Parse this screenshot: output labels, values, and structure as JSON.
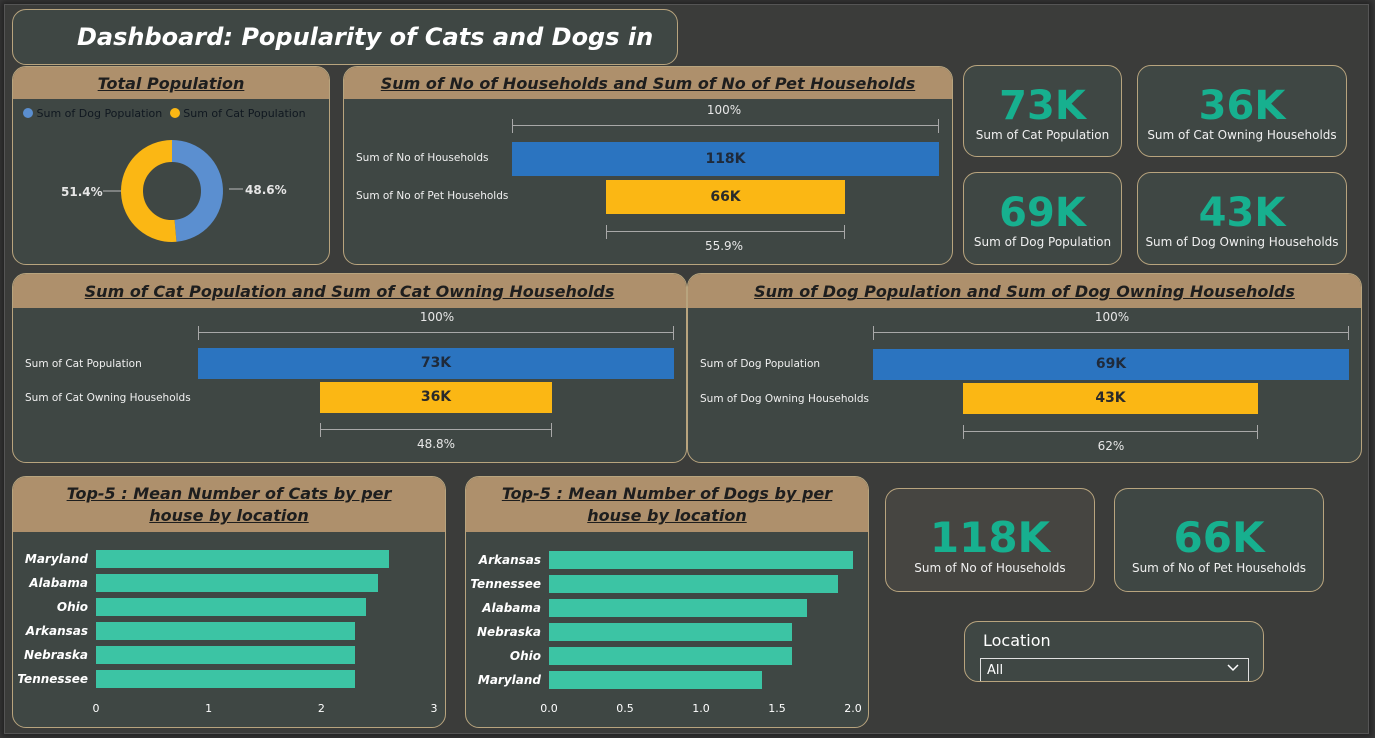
{
  "title": "Dashboard: Popularity of Cats and Dogs in US",
  "colors": {
    "blue": "#2b74c0",
    "yellow": "#fbb714",
    "teal": "#3cc4a4",
    "kpi_teal": "#17b08f",
    "header": "#ae906c",
    "card": "#3f4744"
  },
  "total_population": {
    "title": "Total Population",
    "legend": [
      "Sum of Dog Population",
      "Sum of Cat Population"
    ],
    "dog_pct": "48.6%",
    "cat_pct": "51.4%"
  },
  "households_funnel": {
    "title": "Sum of No of Households and Sum of No of Pet Households",
    "top_pct": "100%",
    "rows": [
      {
        "label": "Sum of No of Households",
        "value": "118K"
      },
      {
        "label": "Sum of No of Pet Households",
        "value": "66K"
      }
    ],
    "bottom_pct": "55.9%"
  },
  "cat_funnel": {
    "title": "Sum of Cat Population and Sum of Cat Owning Households",
    "top_pct": "100%",
    "rows": [
      {
        "label": "Sum of Cat Population",
        "value": "73K"
      },
      {
        "label": "Sum of Cat Owning Households",
        "value": "36K"
      }
    ],
    "bottom_pct": "48.8%"
  },
  "dog_funnel": {
    "title": "Sum of Dog Population and Sum of Dog Owning Households",
    "top_pct": "100%",
    "rows": [
      {
        "label": "Sum of Dog Population",
        "value": "69K"
      },
      {
        "label": "Sum of Dog Owning Households",
        "value": "43K"
      }
    ],
    "bottom_pct": "62%"
  },
  "kpis": {
    "cat_population": {
      "value": "73K",
      "label": "Sum of Cat Population"
    },
    "cat_households": {
      "value": "36K",
      "label": "Sum of Cat Owning Households"
    },
    "dog_population": {
      "value": "69K",
      "label": "Sum of Dog Population"
    },
    "dog_households": {
      "value": "43K",
      "label": "Sum of Dog Owning Households"
    },
    "households": {
      "value": "118K",
      "label": "Sum of No of Households"
    },
    "pet_households": {
      "value": "66K",
      "label": "Sum of No of Pet Households"
    }
  },
  "slicer": {
    "title": "Location",
    "selected": "All"
  },
  "chart_data": [
    {
      "type": "pie",
      "title": "Total Population",
      "categories": [
        "Sum of Dog Population",
        "Sum of Cat Population"
      ],
      "values": [
        48.6,
        51.4
      ]
    },
    {
      "type": "bar",
      "title": "Top-5 : Mean Number of Cats by per house by location",
      "categories": [
        "Maryland",
        "Alabama",
        "Ohio",
        "Arkansas",
        "Nebraska",
        "Tennessee"
      ],
      "values": [
        2.6,
        2.5,
        2.4,
        2.3,
        2.3,
        2.3
      ],
      "xticks": [
        "0",
        "1",
        "2",
        "3"
      ],
      "xlim": [
        0,
        3
      ]
    },
    {
      "type": "bar",
      "title": "Top-5 : Mean Number of Dogs by per house by location",
      "categories": [
        "Arkansas",
        "Tennessee",
        "Alabama",
        "Nebraska",
        "Ohio",
        "Maryland"
      ],
      "values": [
        2.0,
        1.9,
        1.7,
        1.6,
        1.6,
        1.4
      ],
      "xticks": [
        "0.0",
        "0.5",
        "1.0",
        "1.5",
        "2.0"
      ],
      "xlim": [
        0,
        2
      ]
    }
  ]
}
